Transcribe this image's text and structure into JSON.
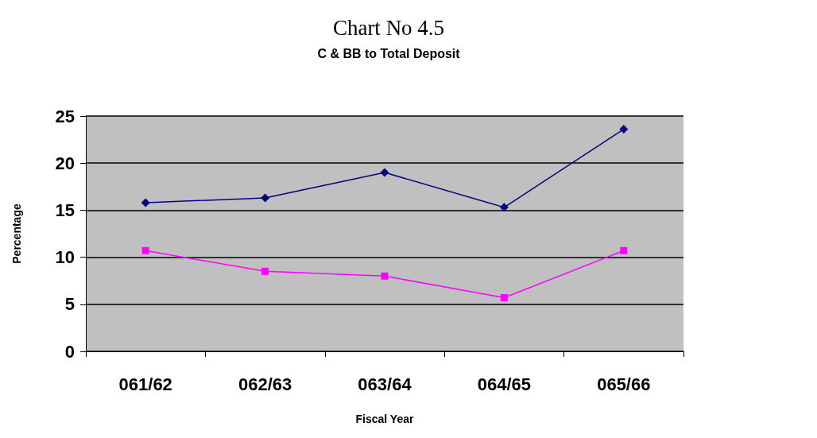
{
  "chart_data": {
    "type": "line",
    "title": "Chart No 4.5",
    "subtitle": "C & BB to Total Deposit",
    "xlabel": "Fiscal Year",
    "ylabel": "Percentage",
    "categories": [
      "061/62",
      "062/63",
      "063/64",
      "064/65",
      "065/66"
    ],
    "series": [
      {
        "color": "#000080",
        "marker": "diamond",
        "values": [
          15.8,
          16.3,
          19.0,
          15.3,
          23.6
        ]
      },
      {
        "color": "#ff00ff",
        "marker": "square",
        "values": [
          10.7,
          8.5,
          8.0,
          5.7,
          10.7
        ]
      }
    ],
    "ylim": [
      0,
      25
    ],
    "yticks": [
      0,
      5,
      10,
      15,
      20,
      25
    ],
    "grid": "y",
    "line_style": "solid"
  }
}
